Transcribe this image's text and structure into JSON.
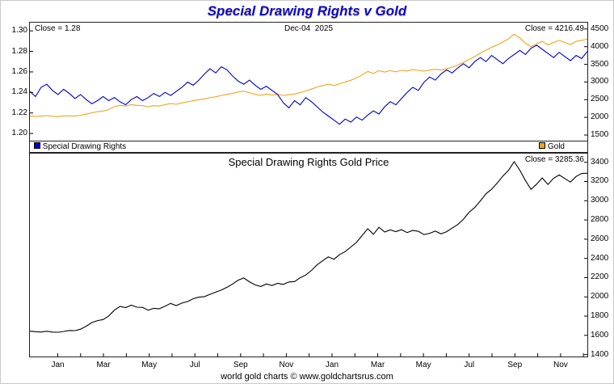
{
  "title": "Special Drawing Rights v Gold",
  "footer": "world gold charts © www.goldchartsrus.com",
  "colors": {
    "title": "#0b0bd0",
    "sdr_blue": "#0000cd",
    "gold_orange": "#f2a41c",
    "sdr_gold_black": "#000000"
  },
  "chart_data": [
    {
      "type": "line",
      "panel": "top",
      "annotations": {
        "left_close": "Close = 1.28",
        "date": "Dec-04  2025",
        "right_close": "Close = 4216.49"
      },
      "legend": [
        {
          "label": "Special Drawing Rights",
          "color": "#0000cd"
        },
        {
          "label": "Gold",
          "color": "#f2a41c"
        }
      ],
      "left_axis": {
        "tick_labels": [
          "1.30",
          "1.28",
          "1.26",
          "1.24",
          "1.22",
          "1.20"
        ],
        "ylim": [
          1.193,
          1.308
        ]
      },
      "right_axis": {
        "tick_labels": [
          "4500",
          "4000",
          "3500",
          "3000",
          "2500",
          "2000",
          "1500"
        ],
        "ylim": [
          1340,
          4680
        ]
      },
      "series": [
        {
          "name": "Special Drawing Rights",
          "axis": "left",
          "color": "#0000cd",
          "values": [
            1.241,
            1.236,
            1.245,
            1.248,
            1.242,
            1.238,
            1.243,
            1.239,
            1.234,
            1.238,
            1.233,
            1.229,
            1.232,
            1.236,
            1.232,
            1.235,
            1.231,
            1.228,
            1.233,
            1.236,
            1.232,
            1.235,
            1.239,
            1.236,
            1.24,
            1.237,
            1.241,
            1.245,
            1.25,
            1.247,
            1.252,
            1.258,
            1.263,
            1.259,
            1.265,
            1.262,
            1.256,
            1.251,
            1.248,
            1.252,
            1.247,
            1.243,
            1.246,
            1.242,
            1.238,
            1.23,
            1.225,
            1.232,
            1.228,
            1.235,
            1.231,
            1.226,
            1.221,
            1.217,
            1.213,
            1.209,
            1.214,
            1.211,
            1.216,
            1.213,
            1.218,
            1.222,
            1.219,
            1.226,
            1.231,
            1.228,
            1.234,
            1.24,
            1.245,
            1.242,
            1.25,
            1.255,
            1.252,
            1.258,
            1.262,
            1.259,
            1.264,
            1.268,
            1.264,
            1.27,
            1.274,
            1.27,
            1.276,
            1.272,
            1.268,
            1.273,
            1.277,
            1.281,
            1.277,
            1.283,
            1.286,
            1.282,
            1.278,
            1.274,
            1.279,
            1.275,
            1.271,
            1.276,
            1.273,
            1.28
          ]
        },
        {
          "name": "Gold",
          "axis": "right",
          "color": "#f2a41c",
          "values": [
            2040,
            2025,
            2035,
            2050,
            2030,
            2020,
            2040,
            2045,
            2035,
            2060,
            2090,
            2130,
            2160,
            2180,
            2220,
            2300,
            2340,
            2320,
            2360,
            2340,
            2330,
            2300,
            2330,
            2320,
            2360,
            2390,
            2370,
            2410,
            2440,
            2470,
            2500,
            2520,
            2560,
            2580,
            2620,
            2650,
            2680,
            2720,
            2740,
            2700,
            2650,
            2620,
            2660,
            2630,
            2650,
            2620,
            2640,
            2660,
            2700,
            2750,
            2800,
            2860,
            2900,
            2940,
            2900,
            2950,
            3000,
            3050,
            3120,
            3200,
            3300,
            3240,
            3320,
            3280,
            3320,
            3290,
            3330,
            3310,
            3350,
            3330,
            3310,
            3340,
            3360,
            3340,
            3380,
            3420,
            3480,
            3560,
            3640,
            3720,
            3820,
            3900,
            3980,
            4050,
            4130,
            4220,
            4350,
            4250,
            4100,
            4000,
            4080,
            4150,
            4050,
            4120,
            4180,
            4120,
            4060,
            4150,
            4180,
            4216.49
          ]
        }
      ]
    },
    {
      "type": "line",
      "panel": "bottom",
      "title": "Special Drawing Rights Gold Price",
      "annotations": {
        "right_close": "Close = 3285.36"
      },
      "right_axis": {
        "tick_labels": [
          "3400",
          "3200",
          "3000",
          "2800",
          "2600",
          "2400",
          "2200",
          "2000",
          "1800",
          "1600",
          "1400"
        ],
        "ylim": [
          1380,
          3490
        ]
      },
      "x_axis": {
        "labels": [
          "Jan",
          "Mar",
          "May",
          "Jul",
          "Sep",
          "Nov",
          "Jan",
          "Mar",
          "May",
          "Jul",
          "Sep",
          "Nov"
        ],
        "months_span": 24
      },
      "series": [
        {
          "name": "SDR Gold Price",
          "axis": "right",
          "color": "#000000",
          "values": [
            1644,
            1638,
            1635,
            1643,
            1634,
            1632,
            1641,
            1651,
            1649,
            1664,
            1695,
            1733,
            1753,
            1764,
            1802,
            1862,
            1901,
            1889,
            1914,
            1893,
            1891,
            1862,
            1881,
            1877,
            1903,
            1932,
            1910,
            1936,
            1952,
            1981,
            1997,
            2003,
            2027,
            2049,
            2071,
            2100,
            2134,
            2174,
            2196,
            2157,
            2125,
            2108,
            2135,
            2118,
            2141,
            2130,
            2155,
            2159,
            2199,
            2227,
            2275,
            2333,
            2375,
            2416,
            2391,
            2440,
            2471,
            2519,
            2566,
            2638,
            2709,
            2651,
            2724,
            2675,
            2697,
            2679,
            2699,
            2669,
            2691,
            2681,
            2648,
            2661,
            2684,
            2655,
            2678,
            2716,
            2753,
            2808,
            2880,
            2929,
            2998,
            3071,
            3119,
            3184,
            3257,
            3315,
            3406,
            3318,
            3211,
            3118,
            3173,
            3237,
            3169,
            3234,
            3268,
            3231,
            3194,
            3252,
            3284,
            3285.36
          ]
        }
      ]
    }
  ]
}
